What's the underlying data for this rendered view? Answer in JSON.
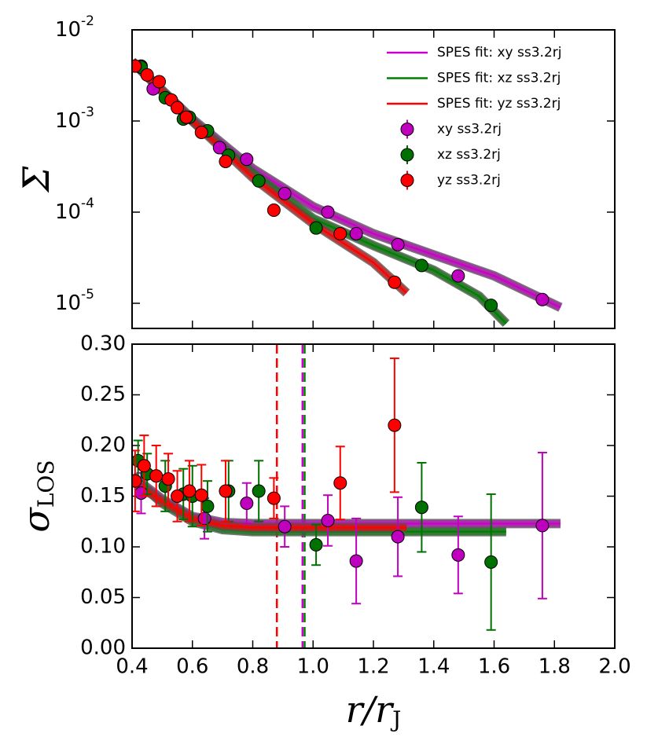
{
  "chart_data": [
    {
      "type": "scatter",
      "ylabel": "Σ",
      "log_y": true,
      "legend": "upper right",
      "xlim": [
        0.4,
        2.0
      ],
      "xticks": [
        0.4,
        0.6,
        0.8,
        1.0,
        1.2,
        1.4,
        1.6,
        1.8,
        2.0
      ],
      "xticklabels": false,
      "ylim": [
        5.3e-06,
        0.01
      ],
      "yticks": [
        {
          "value": 0.01,
          "label": "10",
          "exponent": "-2"
        },
        {
          "value": 0.001,
          "label": "10",
          "exponent": "-3"
        },
        {
          "value": 0.0001,
          "label": "10",
          "exponent": "-4"
        },
        {
          "value": 1e-05,
          "label": "10",
          "exponent": "-5"
        }
      ],
      "series": [
        {
          "name": "SPES fit: xy ss3.2rj",
          "style": "line",
          "color": "#cc00cc",
          "x": [
            0.4,
            0.6,
            0.8,
            1.0,
            1.2,
            1.4,
            1.6,
            1.82
          ],
          "values": [
            0.0045,
            0.00105,
            0.0003,
            0.000115,
            5.8e-05,
            3.4e-05,
            2e-05,
            9e-06
          ]
        },
        {
          "name": "SPES fit: xz ss3.2rj",
          "style": "line",
          "color": "#008000",
          "x": [
            0.4,
            0.6,
            0.8,
            1.0,
            1.2,
            1.4,
            1.55,
            1.64
          ],
          "values": [
            0.0045,
            0.001,
            0.00027,
            8.5e-05,
            4.3e-05,
            2.3e-05,
            1.2e-05,
            6e-06
          ]
        },
        {
          "name": "SPES fit: yz ss3.2rj",
          "style": "line",
          "color": "#ff0000",
          "x": [
            0.4,
            0.6,
            0.8,
            1.0,
            1.2,
            1.31
          ],
          "values": [
            0.0045,
            0.001,
            0.00024,
            7.5e-05,
            2.8e-05,
            1.3e-05
          ]
        },
        {
          "name": "xy ss3.2rj",
          "style": "errorbar",
          "color": "#bf00bf",
          "x": [
            0.43,
            0.47,
            0.69,
            0.78,
            0.906,
            1.049,
            1.143,
            1.281,
            1.481,
            1.76
          ],
          "values": [
            0.004,
            0.00225,
            0.00051,
            0.00038,
            0.00016,
            0.0001,
            5.8e-05,
            4.4e-05,
            2e-05,
            1.1e-05
          ]
        },
        {
          "name": "xz ss3.2rj",
          "style": "errorbar",
          "color": "#007000",
          "x": [
            0.43,
            0.51,
            0.57,
            0.59,
            0.65,
            0.72,
            0.82,
            1.01,
            1.36,
            1.59
          ],
          "values": [
            0.0039,
            0.0018,
            0.00105,
            0.0011,
            0.00078,
            0.00042,
            0.00022,
            6.7e-05,
            2.6e-05,
            9.5e-06
          ]
        },
        {
          "name": "yz ss3.2rj",
          "style": "errorbar",
          "color": "#ff0000",
          "x": [
            0.41,
            0.45,
            0.49,
            0.53,
            0.55,
            0.58,
            0.63,
            0.71,
            0.87,
            1.09,
            1.27
          ],
          "values": [
            0.004,
            0.0032,
            0.0027,
            0.0017,
            0.0014,
            0.0011,
            0.00075,
            0.00036,
            0.000105,
            5.8e-05,
            1.7e-05
          ]
        }
      ]
    },
    {
      "type": "scatter",
      "ylabel": "σ",
      "ylabel_sub": "LOS",
      "xlabel": "r/r",
      "xlabel_sub": "J",
      "xlim": [
        0.4,
        2.0
      ],
      "xticks": [
        0.4,
        0.6,
        0.8,
        {
          "value": 1.0,
          "label": "1.0"
        },
        1.2,
        1.4,
        1.6,
        1.8,
        {
          "value": 2.0,
          "label": "2.0"
        }
      ],
      "ylim": [
        0,
        0.3
      ],
      "yticks": [
        {
          "value": 0,
          "label": "0.00"
        },
        {
          "value": 0.05,
          "label": "0.05"
        },
        {
          "value": 0.1,
          "label": "0.10"
        },
        {
          "value": 0.15,
          "label": "0.15"
        },
        {
          "value": 0.2,
          "label": "0.20"
        },
        {
          "value": 0.25,
          "label": "0.25"
        },
        {
          "value": 0.3,
          "label": "0.30"
        }
      ],
      "vlines": [
        {
          "x": 0.88,
          "color": "#ff0000"
        },
        {
          "x": 0.965,
          "color": "#cc00cc"
        },
        {
          "x": 0.972,
          "color": "#008000"
        }
      ],
      "series": [
        {
          "style": "line",
          "color": "#cc00cc",
          "x": [
            0.4,
            0.5,
            0.6,
            0.7,
            0.8,
            1.82
          ],
          "values": [
            0.17,
            0.147,
            0.13,
            0.124,
            0.123,
            0.123
          ]
        },
        {
          "style": "line",
          "color": "#008000",
          "x": [
            0.4,
            0.5,
            0.6,
            0.7,
            0.8,
            1.64
          ],
          "values": [
            0.17,
            0.143,
            0.125,
            0.117,
            0.115,
            0.115
          ]
        },
        {
          "style": "line",
          "color": "#ff0000",
          "x": [
            0.4,
            0.5,
            0.6,
            0.7,
            0.8,
            1.31
          ],
          "values": [
            0.165,
            0.145,
            0.128,
            0.121,
            0.119,
            0.119
          ]
        },
        {
          "style": "errorbar",
          "color": "#bf00bf",
          "x": [
            0.43,
            0.64,
            0.78,
            0.906,
            1.049,
            1.143,
            1.281,
            1.481,
            1.76
          ],
          "values": [
            0.153,
            0.128,
            0.143,
            0.12,
            0.126,
            0.086,
            0.11,
            0.092,
            0.121
          ],
          "errors": [
            0.02,
            0.02,
            0.02,
            0.02,
            0.025,
            0.042,
            0.039,
            0.038,
            0.072
          ]
        },
        {
          "style": "errorbar",
          "color": "#007000",
          "x": [
            0.42,
            0.45,
            0.51,
            0.57,
            0.6,
            0.65,
            0.72,
            0.82,
            1.01,
            1.36,
            1.59
          ],
          "values": [
            0.185,
            0.172,
            0.16,
            0.152,
            0.15,
            0.14,
            0.155,
            0.155,
            0.102,
            0.139,
            0.085
          ],
          "errors": [
            0.02,
            0.02,
            0.025,
            0.025,
            0.03,
            0.025,
            0.03,
            0.03,
            0.02,
            0.044,
            0.067
          ]
        },
        {
          "style": "errorbar",
          "color": "#ff0000",
          "x": [
            0.41,
            0.44,
            0.48,
            0.52,
            0.55,
            0.59,
            0.63,
            0.71,
            0.87,
            1.09,
            1.27
          ],
          "values": [
            0.165,
            0.18,
            0.17,
            0.167,
            0.15,
            0.155,
            0.151,
            0.155,
            0.148,
            0.163,
            0.22
          ],
          "errors": [
            0.03,
            0.03,
            0.03,
            0.025,
            0.025,
            0.03,
            0.03,
            0.03,
            0.02,
            0.036,
            0.066
          ]
        }
      ]
    }
  ]
}
